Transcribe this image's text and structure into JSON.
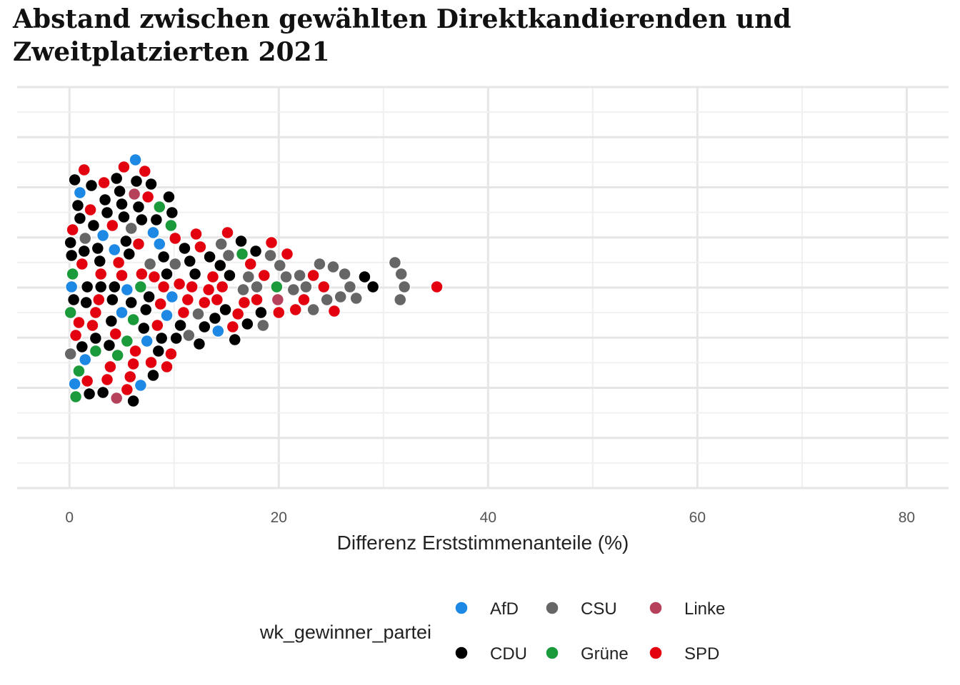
{
  "chart_data": {
    "type": "scatter",
    "subtype": "beeswarm",
    "title": "Abstand zwischen gewählten Direktkandierenden und Zweitplatzierten 2021",
    "xlabel": "Differenz Erststimmenanteile (%)",
    "ylabel": "",
    "xlim": [
      -5,
      84
    ],
    "x_ticks": [
      "0",
      "20",
      "40",
      "60",
      "80"
    ],
    "grid": true,
    "legend": {
      "title": "wk_gewinner_partei",
      "position": "bottom",
      "items": [
        {
          "name": "AfD",
          "color": "#1e88e5"
        },
        {
          "name": "CSU",
          "color": "#666666"
        },
        {
          "name": "Linke",
          "color": "#b5415a"
        },
        {
          "name": "CDU",
          "color": "#000000"
        },
        {
          "name": "Grüne",
          "color": "#1a9a3a"
        },
        {
          "name": "SPD",
          "color": "#e3000f"
        }
      ]
    },
    "series": [
      {
        "name": "AfD",
        "color": "#1e88e5",
        "values": [
          0.2,
          0.5,
          1.0,
          1.5,
          3.2,
          4.3,
          5.0,
          5.5,
          6.3,
          6.8,
          7.4,
          8.0,
          8.6,
          9.3,
          9.8,
          14.2
        ]
      },
      {
        "name": "CDU",
        "color": "#000000",
        "values": [
          0.1,
          0.2,
          0.4,
          0.5,
          0.8,
          1.0,
          1.2,
          1.4,
          1.6,
          1.7,
          1.9,
          2.1,
          2.3,
          2.5,
          2.7,
          2.9,
          3.0,
          3.2,
          3.4,
          3.6,
          3.8,
          4.0,
          4.1,
          4.3,
          4.5,
          4.8,
          5.0,
          5.2,
          5.4,
          5.7,
          5.9,
          6.1,
          6.4,
          6.6,
          6.9,
          7.1,
          7.3,
          7.6,
          7.8,
          8.0,
          8.3,
          8.5,
          8.8,
          9.0,
          9.3,
          9.5,
          9.8,
          10.2,
          10.6,
          11.0,
          11.5,
          12.0,
          12.4,
          12.9,
          13.4,
          13.9,
          14.4,
          14.9,
          15.3,
          15.8,
          16.4,
          17.0,
          17.8,
          18.3,
          28.2,
          29.0
        ]
      },
      {
        "name": "CSU",
        "color": "#666666",
        "values": [
          0.1,
          1.5,
          5.9,
          7.7,
          10.1,
          11.4,
          12.3,
          14.5,
          15.2,
          16.6,
          17.1,
          17.9,
          18.5,
          19.2,
          20.1,
          20.7,
          21.4,
          22.0,
          22.6,
          23.3,
          23.9,
          24.6,
          25.2,
          25.9,
          26.3,
          26.8,
          27.4,
          31.1,
          31.6,
          31.7,
          32.0
        ]
      },
      {
        "name": "Linke",
        "color": "#b5415a",
        "values": [
          4.5,
          6.2,
          19.9
        ]
      },
      {
        "name": "Grüne",
        "color": "#1a9a3a",
        "values": [
          0.1,
          0.3,
          0.6,
          0.9,
          2.5,
          4.6,
          5.5,
          6.1,
          6.8,
          8.6,
          9.7,
          16.5,
          19.8
        ]
      },
      {
        "name": "SPD",
        "color": "#e3000f",
        "values": [
          0.3,
          0.6,
          0.9,
          1.2,
          1.4,
          1.7,
          2.0,
          2.2,
          2.5,
          2.8,
          3.0,
          3.3,
          3.6,
          3.9,
          4.1,
          4.4,
          4.7,
          5.0,
          5.2,
          5.5,
          5.8,
          6.1,
          6.3,
          6.6,
          6.9,
          7.2,
          7.5,
          7.8,
          8.1,
          8.4,
          8.7,
          9.0,
          9.3,
          9.7,
          10.1,
          10.5,
          10.9,
          11.3,
          11.7,
          12.1,
          12.5,
          12.9,
          13.3,
          13.7,
          14.1,
          14.6,
          15.1,
          15.6,
          16.1,
          16.7,
          17.3,
          17.9,
          18.6,
          19.3,
          20.0,
          20.8,
          21.6,
          22.4,
          23.3,
          24.3,
          25.3,
          35.1
        ]
      }
    ]
  }
}
